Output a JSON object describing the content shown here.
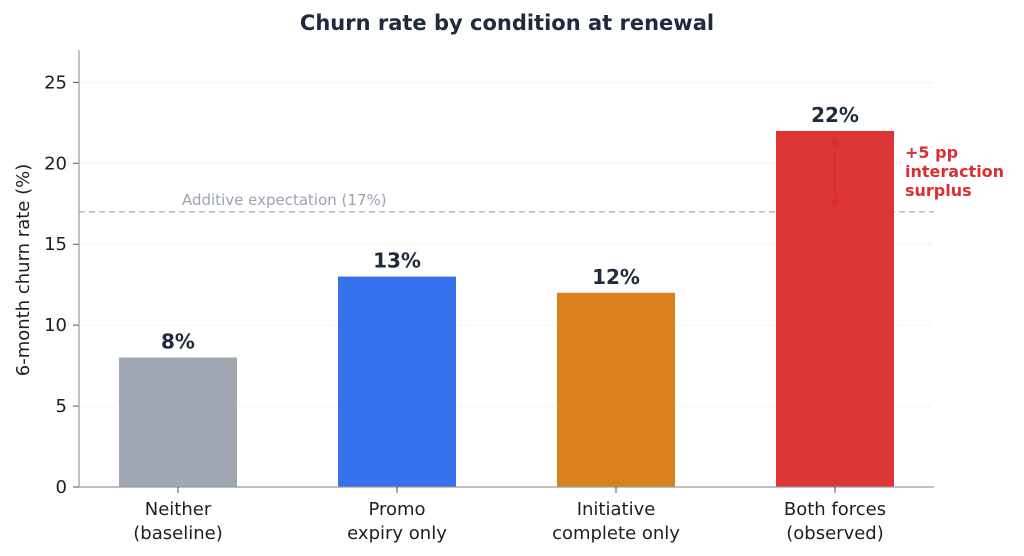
{
  "chart_data": {
    "type": "bar",
    "title": "Churn rate by condition at renewal",
    "xlabel": "",
    "ylabel": "6-month churn rate (%)",
    "ylim": [
      0,
      27
    ],
    "yticks": [
      "0",
      "5",
      "10",
      "15",
      "20",
      "25"
    ],
    "ytick_values": [
      0,
      5,
      10,
      15,
      20,
      25
    ],
    "grid": "horizontal, light dashed",
    "categories": [
      [
        "Neither",
        "(baseline)"
      ],
      [
        "Promo",
        "expiry only"
      ],
      [
        "Initiative",
        "complete only"
      ],
      [
        "Both forces",
        "(observed)"
      ]
    ],
    "values": [
      8,
      13,
      12,
      22
    ],
    "value_labels": [
      "8%",
      "13%",
      "12%",
      "22%"
    ],
    "colors": [
      "#a1a8b3",
      "#3771ed",
      "#d9821d",
      "#dc3636"
    ],
    "reference_line": {
      "value": 17,
      "label": "Additive expectation (17%)",
      "color": "#b9bec6"
    },
    "annotation": {
      "from": 17,
      "to": 22,
      "lines": [
        "+5 pp",
        "interaction",
        "surplus"
      ],
      "color": "#dc2f2f"
    }
  }
}
